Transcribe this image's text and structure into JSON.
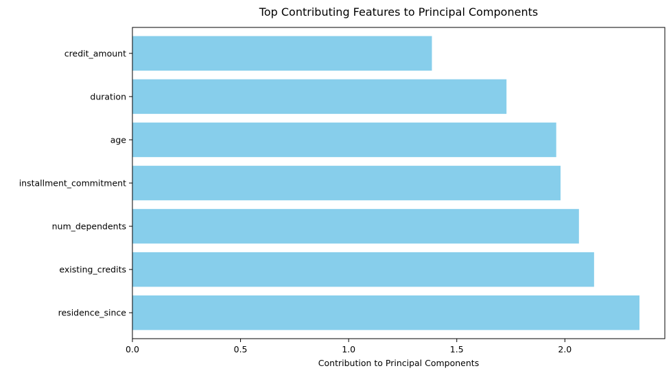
{
  "chart_data": {
    "type": "bar",
    "orientation": "horizontal",
    "title": "Top Contributing Features to Principal Components",
    "xlabel": "Contribution to Principal Components",
    "ylabel": "",
    "categories": [
      "credit_amount",
      "duration",
      "age",
      "installment_commitment",
      "num_dependents",
      "existing_credits",
      "residence_since"
    ],
    "values": [
      1.385,
      1.73,
      1.96,
      1.98,
      2.065,
      2.135,
      2.345
    ],
    "xlim": [
      0,
      2.4622
    ],
    "xticks": [
      0.0,
      0.5,
      1.0,
      1.5,
      2.0
    ],
    "xtick_labels": [
      "0.0",
      "0.5",
      "1.0",
      "1.5",
      "2.0"
    ],
    "bar_color": "#87CEEB",
    "grid": false,
    "legend": "none"
  }
}
